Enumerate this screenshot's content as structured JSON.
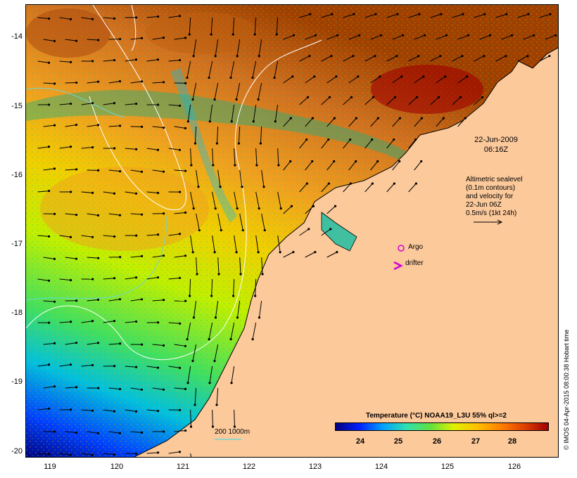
{
  "map": {
    "y_axis_labels": [
      "-14",
      "-15",
      "-16",
      "-17",
      "-18",
      "-19",
      "-20"
    ],
    "x_axis_labels": [
      "119",
      "120",
      "121",
      "122",
      "123",
      "124",
      "125",
      "126"
    ],
    "date_line1": "22-Jun-2009",
    "date_line2": "06:16Z",
    "altimetry_note": [
      "Altimetric sealevel",
      "(0.1m contours)",
      "and velocity for",
      "22-Jun 06Z",
      "0.5m/s (1kt 24h)"
    ],
    "argo_label": "Argo",
    "drifter_label": "drifter",
    "depth_label": "200  1000m",
    "colorbar_title": "Temperature (°C) NOAA19_L3U 55% ql>=2",
    "colorbar_ticks": [
      "24",
      "25",
      "26",
      "27",
      "28"
    ],
    "credit": "© IMOS 04-Apr-2015 08:00:38 Hobart time"
  },
  "colors": {
    "land": "#fcc99b",
    "coast": "#000000",
    "argo": "#d400d4",
    "contour_200m": "#6fd6d6",
    "sealevel": "#ffffff",
    "colorbar": [
      "#00007f",
      "#0020ff",
      "#00a0ff",
      "#30e0b0",
      "#60e040",
      "#e0f000",
      "#ffc000",
      "#ff8000",
      "#e04000",
      "#a00000"
    ]
  }
}
